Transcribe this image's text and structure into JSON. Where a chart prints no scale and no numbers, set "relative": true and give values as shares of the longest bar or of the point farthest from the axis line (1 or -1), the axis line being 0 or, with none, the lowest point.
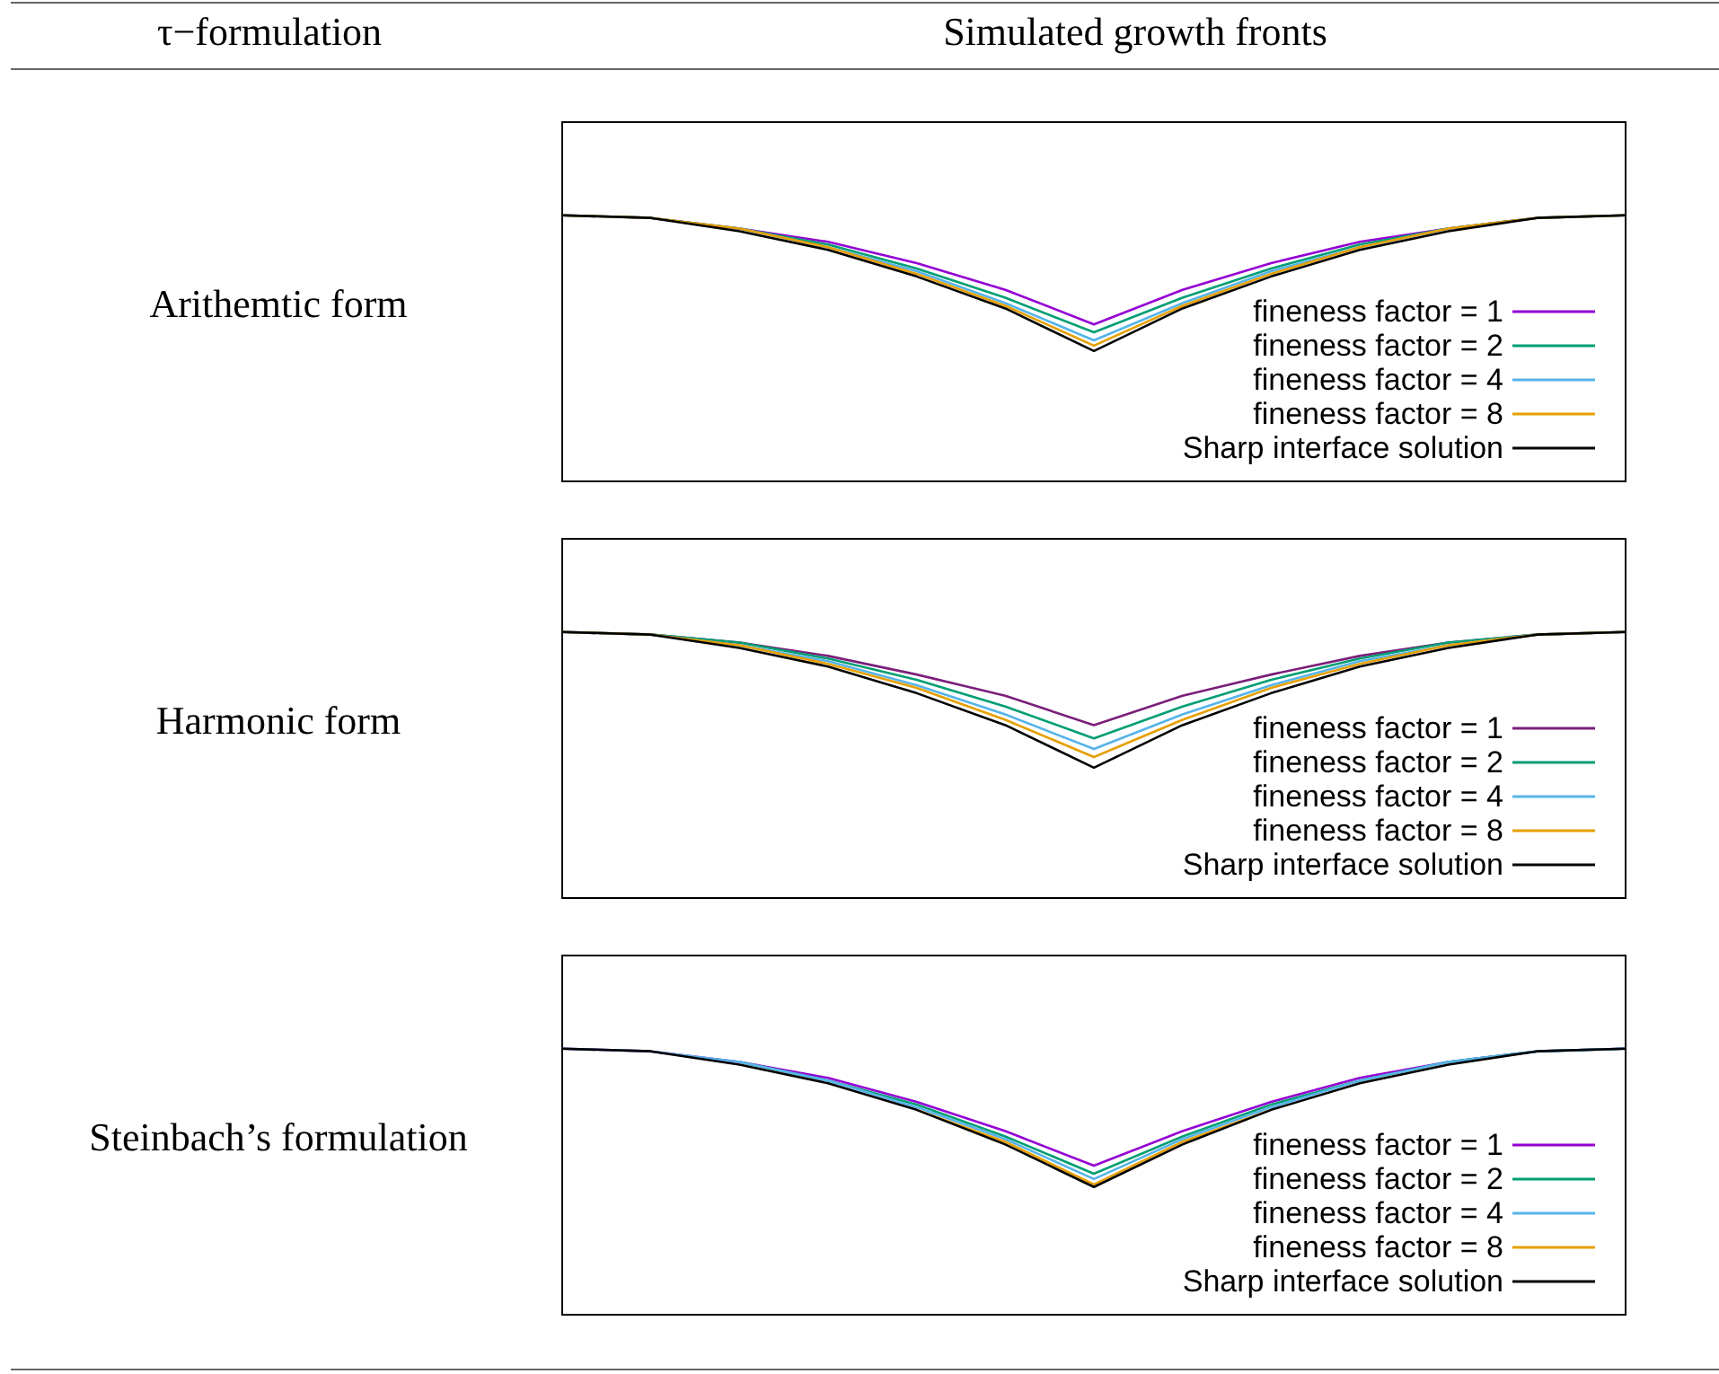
{
  "chart_data": [
    {
      "type": "line",
      "title": "Arithemtic form",
      "relative": true,
      "legend": "bottom right",
      "annotations": [
        "τ−formulation",
        "Simulated growth fronts"
      ],
      "categories": [
        null,
        null,
        null,
        null,
        null,
        null,
        null,
        null,
        null,
        null,
        null,
        null,
        null
      ],
      "series": [
        {
          "name": "fineness factor = 1",
          "color": "#9400d3",
          "values": [
            1,
            0.99,
            0.95,
            0.9,
            0.82,
            0.72,
            0.59,
            0.72,
            0.82,
            0.9,
            0.95,
            0.99,
            1
          ]
        },
        {
          "name": "fineness factor = 2",
          "color": "#009e73",
          "values": [
            1,
            0.99,
            0.95,
            0.89,
            0.8,
            0.69,
            0.56,
            0.69,
            0.8,
            0.89,
            0.95,
            0.99,
            1
          ]
        },
        {
          "name": "fineness factor = 4",
          "color": "#56b4e9",
          "values": [
            null,
            null,
            0.95,
            0.88,
            0.79,
            0.67,
            0.53,
            0.67,
            0.79,
            0.88,
            0.95,
            null,
            null
          ]
        },
        {
          "name": "fineness factor = 8",
          "color": "#e69f00",
          "values": [
            1,
            0.99,
            0.95,
            0.88,
            0.78,
            0.66,
            0.51,
            0.66,
            0.78,
            0.88,
            0.95,
            0.99,
            1
          ]
        },
        {
          "name": "Sharp interface solution",
          "color": "#000000",
          "values": [
            1,
            0.99,
            0.94,
            0.87,
            0.77,
            0.65,
            0.49,
            0.65,
            0.77,
            0.87,
            0.94,
            0.99,
            1
          ]
        }
      ]
    },
    {
      "type": "line",
      "title": "Harmonic form",
      "relative": true,
      "legend": "bottom right",
      "categories": [
        null,
        null,
        null,
        null,
        null,
        null,
        null,
        null,
        null,
        null,
        null,
        null,
        null
      ],
      "series": [
        {
          "name": "fineness factor = 1",
          "color": "#7b1f7b",
          "values": [
            1,
            0.99,
            0.96,
            0.91,
            0.84,
            0.76,
            0.65,
            0.76,
            0.84,
            0.91,
            0.96,
            0.99,
            1
          ]
        },
        {
          "name": "fineness factor = 2",
          "color": "#009e73",
          "values": [
            1,
            0.99,
            0.96,
            0.9,
            0.82,
            0.72,
            0.6,
            0.72,
            0.82,
            0.9,
            0.96,
            0.99,
            1
          ]
        },
        {
          "name": "fineness factor = 4",
          "color": "#56b4e9",
          "values": [
            1,
            0.99,
            0.95,
            0.89,
            0.8,
            0.69,
            0.56,
            0.69,
            0.8,
            0.89,
            0.95,
            0.99,
            1
          ]
        },
        {
          "name": "fineness factor = 8",
          "color": "#e69f00",
          "values": [
            1,
            0.99,
            0.95,
            0.88,
            0.79,
            0.67,
            0.53,
            0.67,
            0.79,
            0.88,
            0.95,
            0.99,
            1
          ]
        },
        {
          "name": "Sharp interface solution",
          "color": "#000000",
          "values": [
            1,
            0.99,
            0.94,
            0.87,
            0.77,
            0.65,
            0.49,
            0.65,
            0.77,
            0.87,
            0.94,
            0.99,
            1
          ]
        }
      ]
    },
    {
      "type": "line",
      "title": "Steinbach’s formulation",
      "relative": true,
      "legend": "bottom right",
      "categories": [
        null,
        null,
        null,
        null,
        null,
        null,
        null,
        null,
        null,
        null,
        null,
        null,
        null
      ],
      "series": [
        {
          "name": "fineness factor = 1",
          "color": "#9400d3",
          "values": [
            1,
            0.99,
            0.95,
            0.89,
            0.8,
            0.69,
            0.56,
            0.69,
            0.8,
            0.89,
            0.95,
            0.99,
            1
          ]
        },
        {
          "name": "fineness factor = 2",
          "color": "#009e73",
          "values": [
            null,
            null,
            0.95,
            0.88,
            0.79,
            0.67,
            0.53,
            0.67,
            0.79,
            0.88,
            0.95,
            0.99,
            1
          ]
        },
        {
          "name": "fineness factor = 4",
          "color": "#56b4e9",
          "values": [
            1,
            0.99,
            0.95,
            0.88,
            0.78,
            0.66,
            0.51,
            0.66,
            0.78,
            0.88,
            0.95,
            0.99,
            1
          ]
        },
        {
          "name": "fineness factor = 8",
          "color": "#e69f00",
          "values": [
            null,
            null,
            null,
            null,
            0.77,
            0.65,
            0.49,
            0.65,
            0.77,
            null,
            null,
            null,
            null
          ]
        },
        {
          "name": "Sharp interface solution",
          "color": "#000000",
          "values": [
            1,
            0.99,
            0.94,
            0.87,
            0.77,
            0.64,
            0.48,
            0.64,
            0.77,
            0.87,
            0.94,
            0.99,
            1
          ]
        }
      ]
    }
  ]
}
